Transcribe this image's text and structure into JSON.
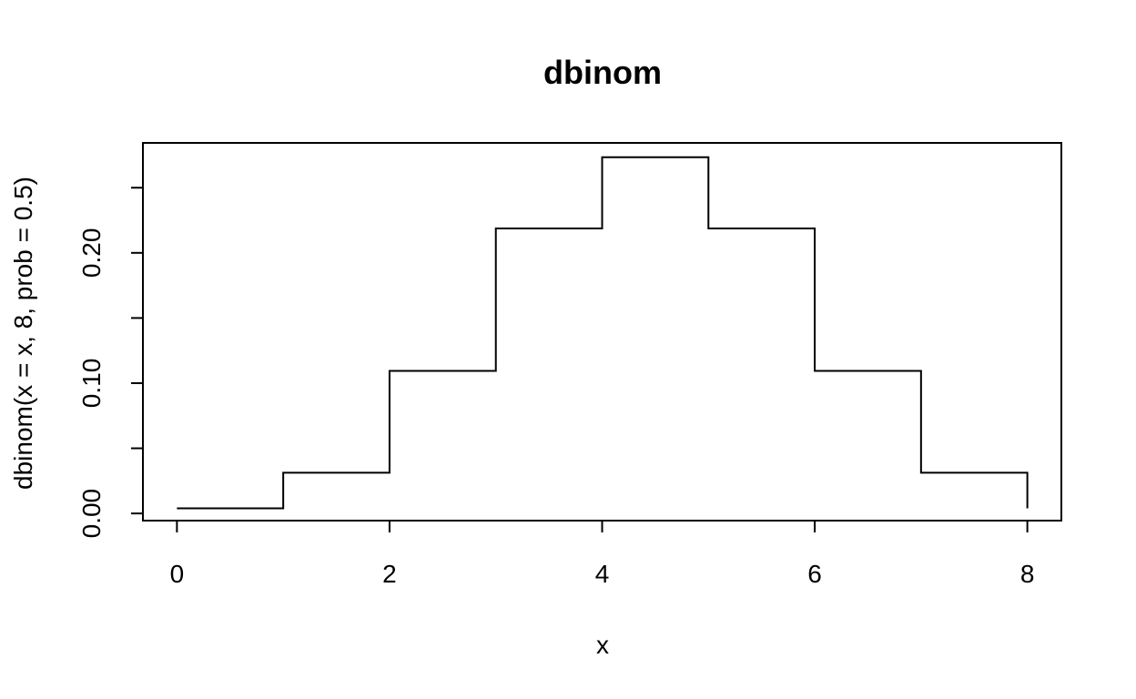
{
  "chart_data": {
    "type": "line",
    "style": "step",
    "title": "dbinom",
    "xlabel": "x",
    "ylabel": "dbinom(x = x, 8, prob = 0.5)",
    "x": [
      0,
      1,
      2,
      3,
      4,
      5,
      6,
      7,
      8
    ],
    "y": [
      0.00390625,
      0.03125,
      0.109375,
      0.21875,
      0.2734375,
      0.21875,
      0.109375,
      0.03125,
      0.00390625
    ],
    "xlim": [
      -0.32,
      8.32
    ],
    "ylim": [
      -0.0055,
      0.2844
    ],
    "x_ticks": [
      0,
      2,
      4,
      6,
      8
    ],
    "x_tick_labels": [
      "0",
      "2",
      "4",
      "6",
      "8"
    ],
    "y_ticks": [
      0.0,
      0.05,
      0.1,
      0.15,
      0.2,
      0.25
    ],
    "y_tick_labels": [
      "0.00",
      "",
      "0.10",
      "",
      "0.20",
      ""
    ],
    "grid": false,
    "legend": "none"
  }
}
